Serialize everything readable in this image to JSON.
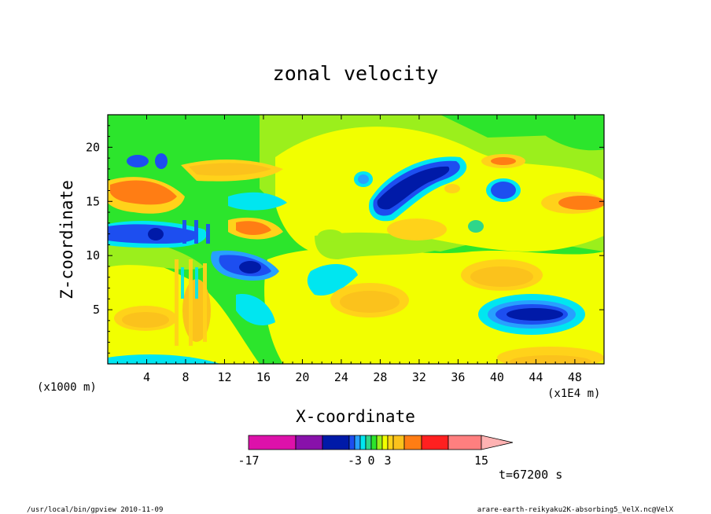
{
  "chart_data": {
    "type": "heatmap",
    "title": "zonal velocity",
    "xlabel": "X-coordinate",
    "ylabel": "Z-coordinate",
    "x_unit": "(x1E4 m)",
    "y_unit": "(x1000 m)",
    "xlim": [
      0,
      51
    ],
    "ylim": [
      0,
      23
    ],
    "xticks": [
      "4",
      "8",
      "12",
      "16",
      "20",
      "24",
      "28",
      "32",
      "36",
      "40",
      "44",
      "48"
    ],
    "yticks": [
      "5",
      "10",
      "15",
      "20"
    ],
    "colorbar": {
      "levels": [
        -17,
        -13,
        -9,
        -6,
        -5,
        -4,
        -3,
        -2,
        -1,
        0,
        1,
        2,
        3,
        4,
        6,
        9,
        12,
        15
      ],
      "tick_labels": [
        "-17",
        "-3",
        "0",
        "3",
        "15"
      ],
      "colors": {
        "lt_-13": "#dd11aa",
        "-13_-9": "#8811aa",
        "-9_-4": "#001aa8",
        "-4_-3": "#1d4ef0",
        "-3_-2": "#27a0ff",
        "-2_-1": "#00e6f0",
        "-1_0": "#2fd68a",
        "0_1": "#2ce52c",
        "1_2": "#9bef1c",
        "2_3": "#f2ff00",
        "3_4": "#ffd21a",
        "4_6": "#fbc21c",
        "6_9": "#ff7d14",
        "9_12": "#ff2020",
        "12_15": "#ff7f7f",
        "gt_15": "#ffb2b2"
      }
    },
    "time_label": "t=67200 s"
  },
  "footer": {
    "left": "/usr/local/bin/gpview  2010-11-09",
    "right": "arare-earth-reikyaku2K-absorbing5_VelX.nc@VelX"
  }
}
